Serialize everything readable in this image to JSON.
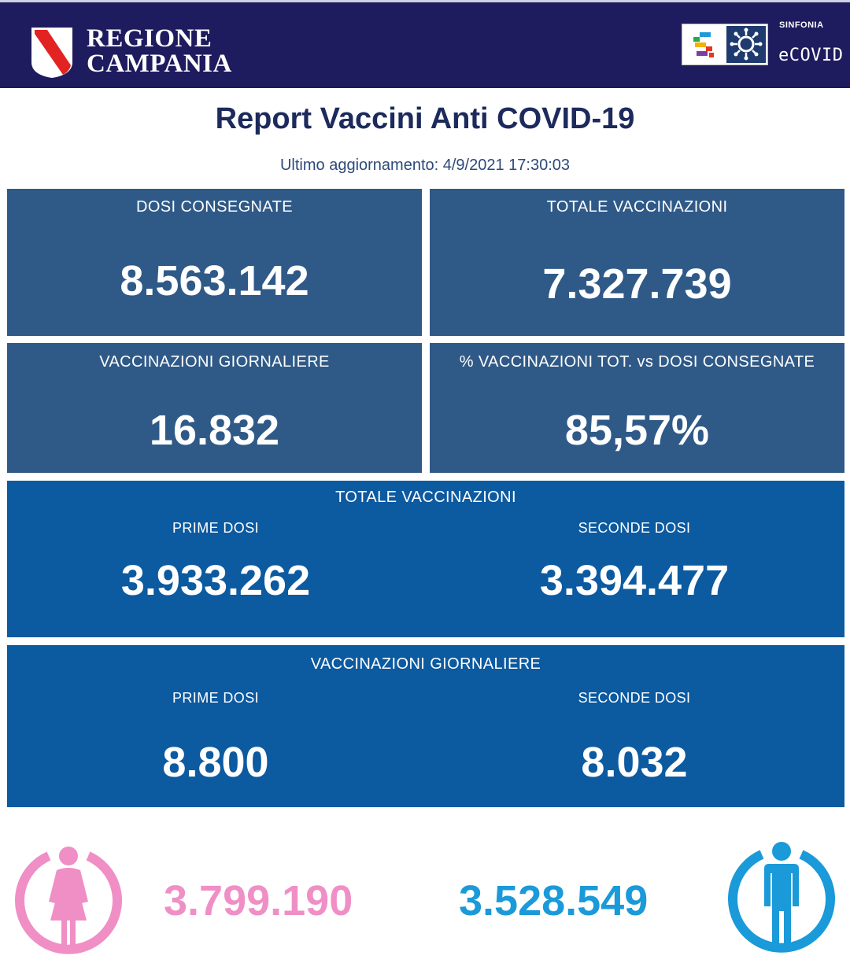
{
  "header": {
    "region_line1": "REGIONE",
    "region_line2": "CAMPANIA",
    "sinfonia_label": "SINFONIA",
    "ecovid_label": "eCOVID"
  },
  "report": {
    "title": "Report Vaccini Anti COVID-19",
    "last_update": "Ultimo aggiornamento: 4/9/2021  17:30:03"
  },
  "cards": {
    "dosi_consegnate": {
      "label": "DOSI  CONSEGNATE",
      "value": "8.563.142"
    },
    "totale_vaccinazioni": {
      "label": "TOTALE VACCINAZIONI",
      "value": "7.327.739"
    },
    "vaccinazioni_giornaliere": {
      "label": "VACCINAZIONI GIORNALIERE",
      "value": "16.832"
    },
    "percentuale": {
      "label": "% VACCINAZIONI TOT. vs DOSI CONSEGNATE",
      "value": "85,57%"
    }
  },
  "totale_panel": {
    "label": "TOTALE VACCINAZIONI",
    "prime_label": "PRIME DOSI",
    "prime_value": "3.933.262",
    "seconde_label": "SECONDE DOSI",
    "seconde_value": "3.394.477"
  },
  "giornaliere_panel": {
    "label": "VACCINAZIONI GIORNALIERE",
    "prime_label": "PRIME DOSI",
    "prime_value": "8.800",
    "seconde_label": "SECONDE DOSI",
    "seconde_value": "8.032"
  },
  "gender": {
    "female_value": "3.799.190",
    "male_value": "3.528.549",
    "female_color": "#ef8fc6",
    "male_color": "#1a9ad9",
    "female_icon": "female-person-icon",
    "male_icon": "male-person-icon"
  },
  "colors": {
    "header_bg": "#1e1b5e",
    "title": "#1c2a5c",
    "card_dark": "#2f5a88",
    "card_blue": "#0c5aa0"
  }
}
